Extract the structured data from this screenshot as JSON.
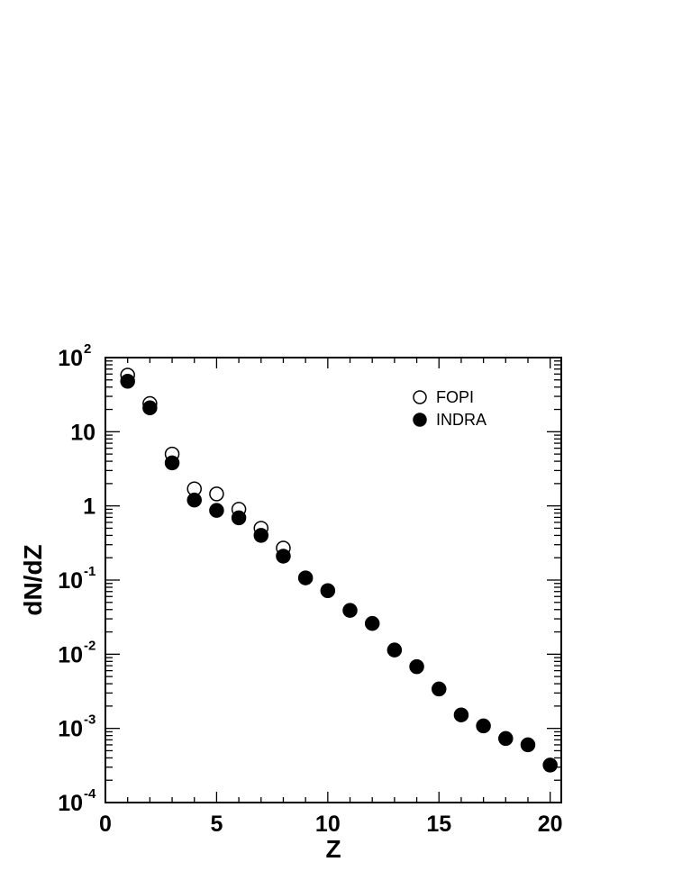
{
  "chart_data": {
    "type": "scatter",
    "xlabel": "Z",
    "ylabel": "dN/dZ",
    "xlim": [
      0,
      20.5
    ],
    "ylim": [
      0.0001,
      100
    ],
    "yscale": "log",
    "x_ticks": [
      {
        "value": 0,
        "label": "0"
      },
      {
        "value": 5,
        "label": "5"
      },
      {
        "value": 10,
        "label": "10"
      },
      {
        "value": 15,
        "label": "15"
      },
      {
        "value": 20,
        "label": "20"
      }
    ],
    "y_ticks": [
      {
        "value": 100,
        "base": "10",
        "exp": "2"
      },
      {
        "value": 10,
        "base": "10",
        "exp": ""
      },
      {
        "value": 1,
        "base": "1",
        "exp": ""
      },
      {
        "value": 0.1,
        "base": "10",
        "exp": "-1"
      },
      {
        "value": 0.01,
        "base": "10",
        "exp": "-2"
      },
      {
        "value": 0.001,
        "base": "10",
        "exp": "-3"
      },
      {
        "value": 0.0001,
        "base": "10",
        "exp": "-4"
      }
    ],
    "legend_position": "top-right",
    "series": [
      {
        "name": "FOPI",
        "marker": "open-circle",
        "color": "#000000",
        "x": [
          1,
          2,
          3,
          4,
          5,
          6,
          7,
          8
        ],
        "y": [
          58,
          24,
          5.0,
          1.7,
          1.45,
          0.9,
          0.5,
          0.27
        ]
      },
      {
        "name": "INDRA",
        "marker": "filled-circle",
        "color": "#000000",
        "x": [
          1,
          2,
          3,
          4,
          5,
          6,
          7,
          8,
          9,
          10,
          11,
          12,
          13,
          14,
          15,
          16,
          17,
          18,
          19,
          20
        ],
        "y": [
          48,
          21,
          3.8,
          1.2,
          0.87,
          0.69,
          0.4,
          0.21,
          0.107,
          0.072,
          0.039,
          0.026,
          0.0114,
          0.0068,
          0.0034,
          0.00152,
          0.00108,
          0.00073,
          0.0006,
          0.00032
        ]
      }
    ]
  }
}
